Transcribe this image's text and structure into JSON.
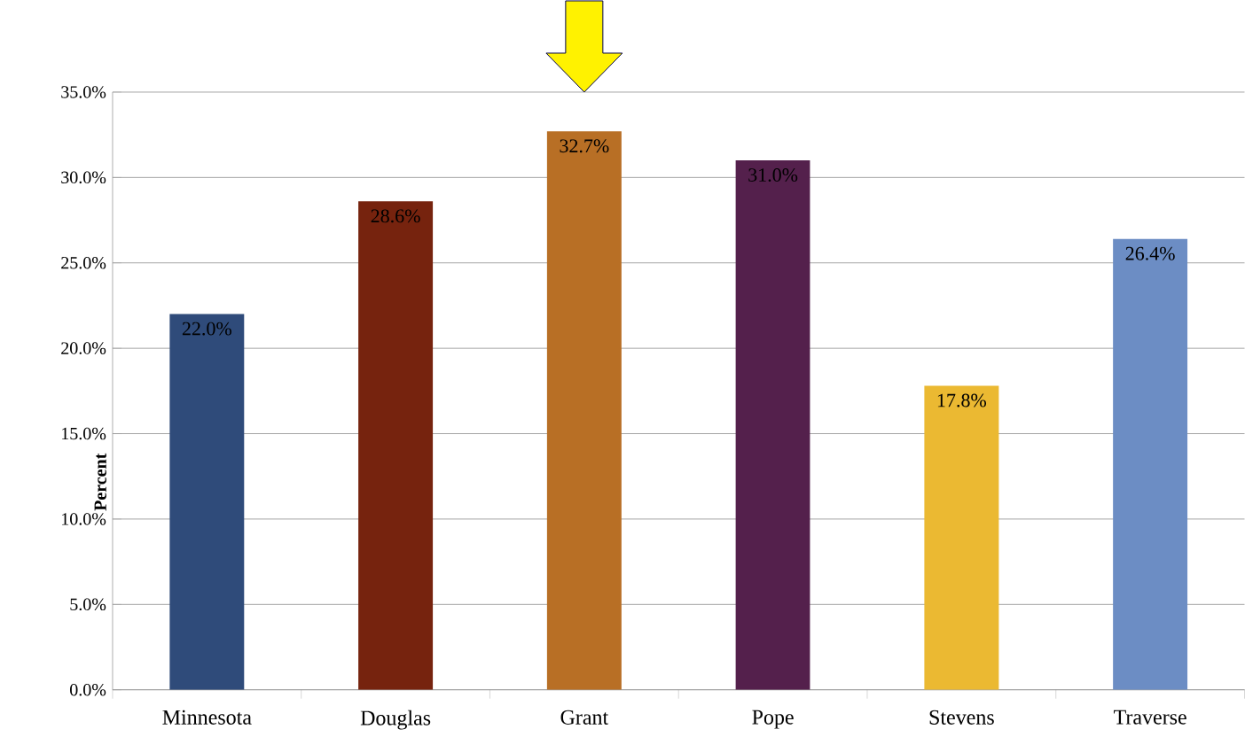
{
  "chart_data": {
    "type": "bar",
    "ylabel": "Percent",
    "categories": [
      "Minnesota",
      "Douglas",
      "Grant",
      "Pope",
      "Stevens",
      "Traverse"
    ],
    "values": [
      22.0,
      28.6,
      32.7,
      31.0,
      17.8,
      26.4
    ],
    "colors": [
      "#2f4b7a",
      "#76230e",
      "#b86f25",
      "#54204c",
      "#ebb932",
      "#6c8dc4"
    ],
    "value_labels": [
      "22.0%",
      "28.6%",
      "32.7%",
      "31.0%",
      "17.8%",
      "26.4%"
    ],
    "ylim": [
      0,
      35
    ],
    "yticks": [
      {
        "value": 0,
        "label": "0.0%"
      },
      {
        "value": 5,
        "label": "5.0%"
      },
      {
        "value": 10,
        "label": "10.0%"
      },
      {
        "value": 15,
        "label": "15.0%"
      },
      {
        "value": 20,
        "label": "20.0%"
      },
      {
        "value": 25,
        "label": "25.0%"
      },
      {
        "value": 30,
        "label": "30.0%"
      },
      {
        "value": 35,
        "label": "35.0%"
      }
    ],
    "grid": "y"
  }
}
